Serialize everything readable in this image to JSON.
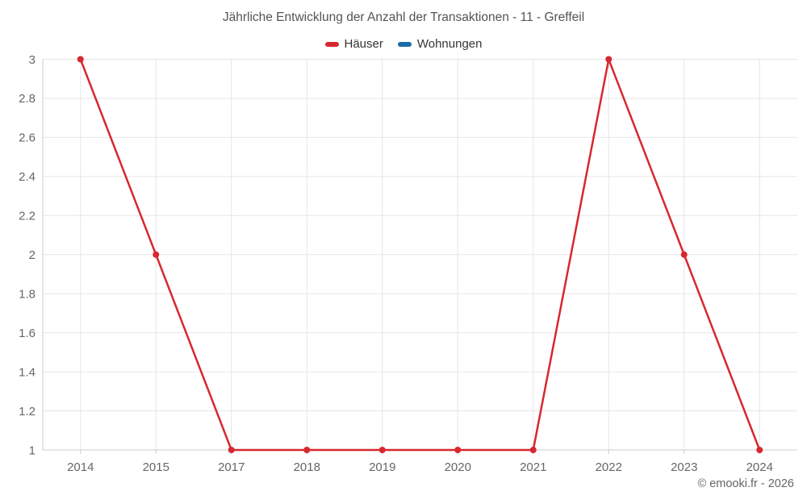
{
  "header": {
    "title": "Jährliche Entwicklung der Anzahl der Transaktionen - 11 - Greffeil"
  },
  "legend": {
    "items": [
      {
        "label": "Häuser",
        "color": "#d7282f"
      },
      {
        "label": "Wohnungen",
        "color": "#1b6ca8"
      }
    ]
  },
  "footer": {
    "credit": "© emooki.fr - 2026"
  },
  "chart_data": {
    "type": "line",
    "title": "Jährliche Entwicklung der Anzahl der Transaktionen - 11 - Greffeil",
    "categories": [
      "2014",
      "2015",
      "2017",
      "2018",
      "2019",
      "2020",
      "2021",
      "2022",
      "2023",
      "2024"
    ],
    "series": [
      {
        "name": "Häuser",
        "color": "#d7282f",
        "values": [
          3,
          2,
          1,
          1,
          1,
          1,
          1,
          3,
          2,
          1
        ]
      },
      {
        "name": "Wohnungen",
        "color": "#1b6ca8",
        "values": []
      }
    ],
    "xlabel": "",
    "ylabel": "",
    "ylim": [
      1,
      3
    ],
    "ytick_step": 0.2,
    "grid": true,
    "legend_position": "top",
    "colors": {
      "grid_line": "#e6e6e6",
      "axis_line": "#cccccc",
      "tick_label": "#666666",
      "title_text": "#545454",
      "legend_text": "#333333"
    }
  }
}
